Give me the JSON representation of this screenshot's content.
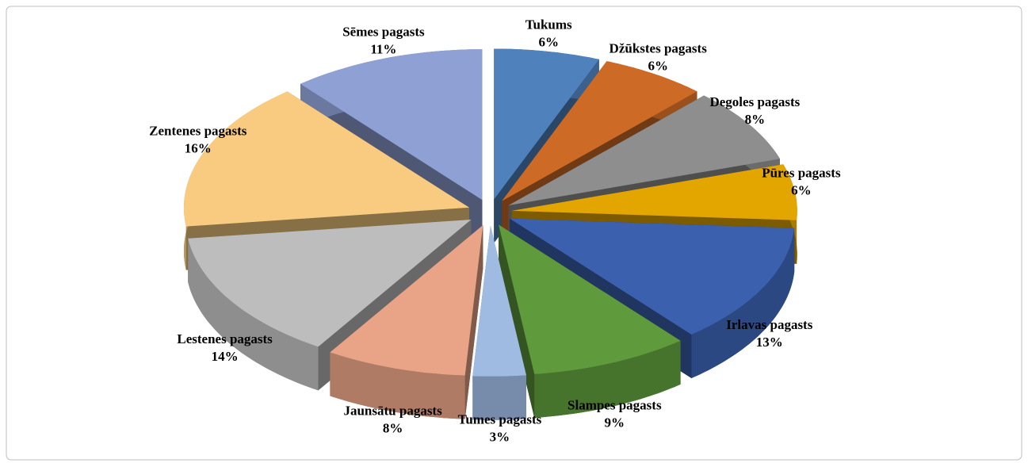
{
  "chart_data": {
    "type": "pie3d",
    "categories": [
      "Tukums",
      "Džūkstes pagasts",
      "Degoles pagasts",
      "Pūres pagasts",
      "Irlavas pagasts",
      "Slampes pagasts",
      "Tumes pagasts",
      "Jaunsātu pagasts",
      "Lestenes pagasts",
      "Zentenes pagasts",
      "Sēmes pagasts"
    ],
    "values": [
      6,
      6,
      8,
      6,
      13,
      9,
      3,
      8,
      14,
      16,
      11
    ],
    "value_labels": [
      "6%",
      "6%",
      "8%",
      "6%",
      "13%",
      "9%",
      "3%",
      "8%",
      "14%",
      "16%",
      "11%"
    ],
    "colors": [
      "#4f81bd",
      "#cc6a26",
      "#8e8e8e",
      "#e3a600",
      "#3b60ad",
      "#5f9a3c",
      "#9fbbe2",
      "#e9a487",
      "#bdbdbd",
      "#f8cb80",
      "#8ea0d4"
    ]
  }
}
